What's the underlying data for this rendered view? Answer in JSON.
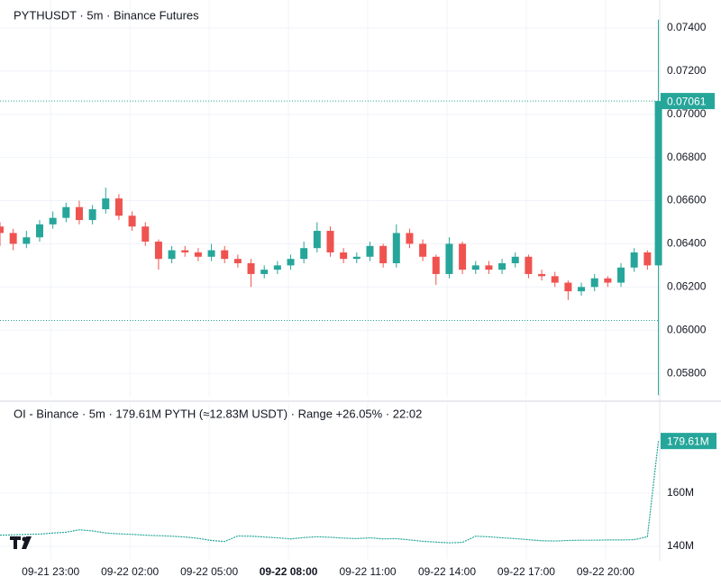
{
  "chart_data": [
    {
      "type": "candlestick",
      "title": "PYTHUSDT · 5m · Binance Futures",
      "x": [
        "09-21 21:05",
        "09-21 21:35",
        "09-21 22:05",
        "09-21 22:35",
        "09-21 23:05",
        "09-21 23:35",
        "09-22 00:05",
        "09-22 00:35",
        "09-22 01:05",
        "09-22 01:35",
        "09-22 02:05",
        "09-22 02:35",
        "09-22 03:05",
        "09-22 03:35",
        "09-22 04:05",
        "09-22 04:35",
        "09-22 05:05",
        "09-22 05:35",
        "09-22 06:05",
        "09-22 06:35",
        "09-22 07:05",
        "09-22 07:35",
        "09-22 08:05",
        "09-22 08:35",
        "09-22 09:05",
        "09-22 09:35",
        "09-22 10:05",
        "09-22 10:35",
        "09-22 11:05",
        "09-22 11:35",
        "09-22 12:05",
        "09-22 12:35",
        "09-22 13:05",
        "09-22 13:35",
        "09-22 14:05",
        "09-22 14:35",
        "09-22 15:05",
        "09-22 15:35",
        "09-22 16:05",
        "09-22 16:35",
        "09-22 17:05",
        "09-22 17:35",
        "09-22 18:05",
        "09-22 18:35",
        "09-22 19:05",
        "09-22 19:35",
        "09-22 20:05",
        "09-22 20:35",
        "09-22 21:05",
        "09-22 21:35",
        "09-22 22:00"
      ],
      "open": [
        0.0648,
        0.0645,
        0.064,
        0.0643,
        0.0649,
        0.0652,
        0.0657,
        0.0651,
        0.0656,
        0.0661,
        0.0653,
        0.0648,
        0.0641,
        0.0633,
        0.0637,
        0.0636,
        0.0634,
        0.0637,
        0.0633,
        0.0631,
        0.0626,
        0.0628,
        0.063,
        0.0633,
        0.0638,
        0.0646,
        0.0636,
        0.0633,
        0.0634,
        0.0639,
        0.0631,
        0.0645,
        0.064,
        0.0634,
        0.0626,
        0.064,
        0.0628,
        0.063,
        0.0628,
        0.0631,
        0.0634,
        0.0626,
        0.0625,
        0.0622,
        0.0618,
        0.062,
        0.0624,
        0.0622,
        0.0629,
        0.0636,
        0.063
      ],
      "high": [
        0.065,
        0.0647,
        0.0646,
        0.0651,
        0.0655,
        0.0659,
        0.066,
        0.0658,
        0.0666,
        0.0663,
        0.0655,
        0.065,
        0.0642,
        0.0639,
        0.0639,
        0.0638,
        0.064,
        0.0639,
        0.0635,
        0.0633,
        0.063,
        0.0632,
        0.0635,
        0.0641,
        0.065,
        0.0648,
        0.0638,
        0.0636,
        0.0641,
        0.064,
        0.0649,
        0.0647,
        0.0642,
        0.0635,
        0.0643,
        0.0641,
        0.0632,
        0.0632,
        0.0633,
        0.0636,
        0.0635,
        0.0628,
        0.0627,
        0.0623,
        0.0622,
        0.0626,
        0.0625,
        0.0631,
        0.0638,
        0.0637,
        0.07438
      ],
      "low": [
        0.0639,
        0.0637,
        0.0638,
        0.0641,
        0.0647,
        0.065,
        0.0649,
        0.0649,
        0.0654,
        0.0651,
        0.0646,
        0.0639,
        0.0628,
        0.0631,
        0.0634,
        0.0632,
        0.0632,
        0.0631,
        0.0629,
        0.062,
        0.0624,
        0.0626,
        0.0628,
        0.0631,
        0.0636,
        0.0634,
        0.0631,
        0.0631,
        0.0632,
        0.0629,
        0.0629,
        0.0638,
        0.0632,
        0.0621,
        0.0624,
        0.0626,
        0.0626,
        0.0626,
        0.0626,
        0.0629,
        0.0624,
        0.0623,
        0.062,
        0.0614,
        0.0616,
        0.0618,
        0.062,
        0.062,
        0.0627,
        0.0628,
        0.05699
      ],
      "close": [
        0.0645,
        0.064,
        0.0643,
        0.0649,
        0.0652,
        0.0657,
        0.0651,
        0.0656,
        0.0661,
        0.0653,
        0.0648,
        0.0641,
        0.0633,
        0.0637,
        0.0636,
        0.0634,
        0.0637,
        0.0633,
        0.0631,
        0.0626,
        0.0628,
        0.063,
        0.0633,
        0.0638,
        0.0646,
        0.0636,
        0.0633,
        0.0634,
        0.0639,
        0.0631,
        0.0645,
        0.064,
        0.0634,
        0.0626,
        0.064,
        0.0628,
        0.063,
        0.0628,
        0.0631,
        0.0634,
        0.0626,
        0.0625,
        0.0622,
        0.0618,
        0.062,
        0.0624,
        0.0622,
        0.0629,
        0.0636,
        0.063,
        0.07061
      ],
      "up_color": "#26a69a",
      "down_color": "#ef5350",
      "xlim": [
        "09-21 21:05",
        "09-22 22:05"
      ],
      "ylim": [
        0.05692,
        0.07529
      ],
      "yticks": [
        {
          "value": 0.074,
          "label": "0.07400"
        },
        {
          "value": 0.072,
          "label": "0.07200"
        },
        {
          "value": 0.07,
          "label": "0.07000"
        },
        {
          "value": 0.068,
          "label": "0.06800"
        },
        {
          "value": 0.066,
          "label": "0.06600"
        },
        {
          "value": 0.064,
          "label": "0.06400"
        },
        {
          "value": 0.062,
          "label": "0.06200"
        },
        {
          "value": 0.06,
          "label": "0.06000"
        },
        {
          "value": 0.058,
          "label": "0.05800"
        }
      ],
      "last_price": {
        "value": 0.07061,
        "label": "0.07061"
      },
      "ref_line": 0.06045,
      "grid": true
    },
    {
      "type": "line",
      "title": "OI - Binance · 5m · 179.61M PYTH (≈12.83M USDT) · Range +26.05% · 22:02",
      "x": [
        "09-21 21:05",
        "09-21 21:35",
        "09-21 22:05",
        "09-21 22:35",
        "09-21 23:05",
        "09-21 23:35",
        "09-22 00:05",
        "09-22 00:35",
        "09-22 01:05",
        "09-22 01:35",
        "09-22 02:05",
        "09-22 02:35",
        "09-22 03:05",
        "09-22 03:35",
        "09-22 04:05",
        "09-22 04:35",
        "09-22 05:05",
        "09-22 05:35",
        "09-22 06:05",
        "09-22 06:35",
        "09-22 07:05",
        "09-22 07:35",
        "09-22 08:05",
        "09-22 08:35",
        "09-22 09:05",
        "09-22 09:35",
        "09-22 10:05",
        "09-22 10:35",
        "09-22 11:05",
        "09-22 11:35",
        "09-22 12:05",
        "09-22 12:35",
        "09-22 13:05",
        "09-22 13:35",
        "09-22 14:05",
        "09-22 14:35",
        "09-22 15:05",
        "09-22 15:35",
        "09-22 16:05",
        "09-22 16:35",
        "09-22 17:05",
        "09-22 17:35",
        "09-22 18:05",
        "09-22 18:35",
        "09-22 19:05",
        "09-22 19:35",
        "09-22 20:05",
        "09-22 20:35",
        "09-22 21:05",
        "09-22 21:35",
        "09-22 22:00"
      ],
      "values": [
        144.2,
        144.3,
        144.5,
        144.6,
        145.0,
        145.3,
        146.2,
        145.8,
        145.0,
        144.7,
        144.5,
        144.2,
        144.0,
        143.8,
        143.5,
        143.0,
        142.2,
        141.8,
        143.9,
        143.8,
        143.5,
        143.2,
        142.8,
        143.3,
        143.6,
        143.4,
        143.1,
        142.9,
        143.2,
        142.8,
        142.9,
        142.4,
        141.9,
        141.6,
        141.3,
        141.5,
        143.8,
        143.6,
        143.2,
        142.9,
        142.5,
        142.1,
        142.0,
        142.2,
        142.3,
        142.3,
        142.4,
        142.4,
        142.5,
        143.6,
        179.61
      ],
      "color": "#26a69a",
      "last_value": {
        "value": 179.61,
        "label": "179.61M"
      },
      "xlim": [
        "09-21 21:05",
        "09-22 22:05"
      ],
      "ylim": [
        135.25,
        193.9
      ],
      "yticks": [
        {
          "value": 160,
          "label": "160M"
        },
        {
          "value": 140,
          "label": "140M"
        }
      ],
      "xticks": [
        "09-21 23:00",
        "09-22 02:00",
        "09-22 05:00",
        "09-22 08:00",
        "09-22 11:00",
        "09-22 14:00",
        "09-22 17:00",
        "09-22 20:00"
      ],
      "bold_xtick": 3,
      "grid": true
    }
  ]
}
